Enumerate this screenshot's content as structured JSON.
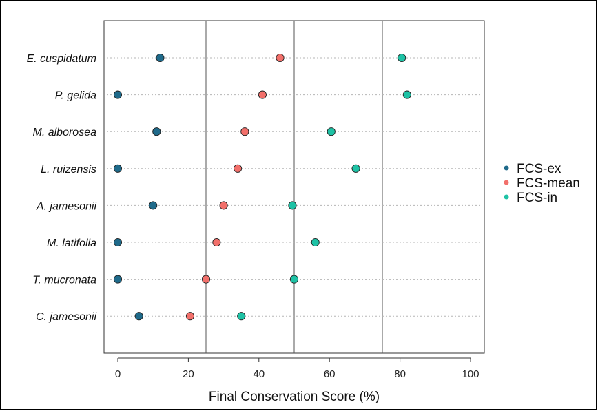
{
  "chart_data": {
    "type": "scatter",
    "title": "",
    "xlabel": "Final Conservation Score (%)",
    "ylabel": "",
    "xlim": [
      0,
      100
    ],
    "xticks": [
      "0",
      "20",
      "40",
      "60",
      "80",
      "100"
    ],
    "reference_lines": [
      25,
      50,
      75
    ],
    "legend_position": "right",
    "categories": [
      "E. cuspidatum",
      "P. gelida",
      "M. alborosea",
      "L. ruizensis",
      "A. jamesonii",
      "M. latifolia",
      "T. mucronata",
      "C. jamesonii"
    ],
    "series": [
      {
        "name": "FCS-ex",
        "color": "#1f6a8a",
        "values": [
          12,
          0,
          11,
          0,
          10,
          0,
          0,
          6
        ]
      },
      {
        "name": "FCS-mean",
        "color": "#f2706b",
        "values": [
          46,
          41,
          36,
          34,
          30,
          28,
          25,
          20.5
        ]
      },
      {
        "name": "FCS-in",
        "color": "#1ec2a5",
        "values": [
          80.5,
          82,
          60.5,
          67.5,
          49.5,
          56,
          50,
          35
        ]
      }
    ]
  }
}
